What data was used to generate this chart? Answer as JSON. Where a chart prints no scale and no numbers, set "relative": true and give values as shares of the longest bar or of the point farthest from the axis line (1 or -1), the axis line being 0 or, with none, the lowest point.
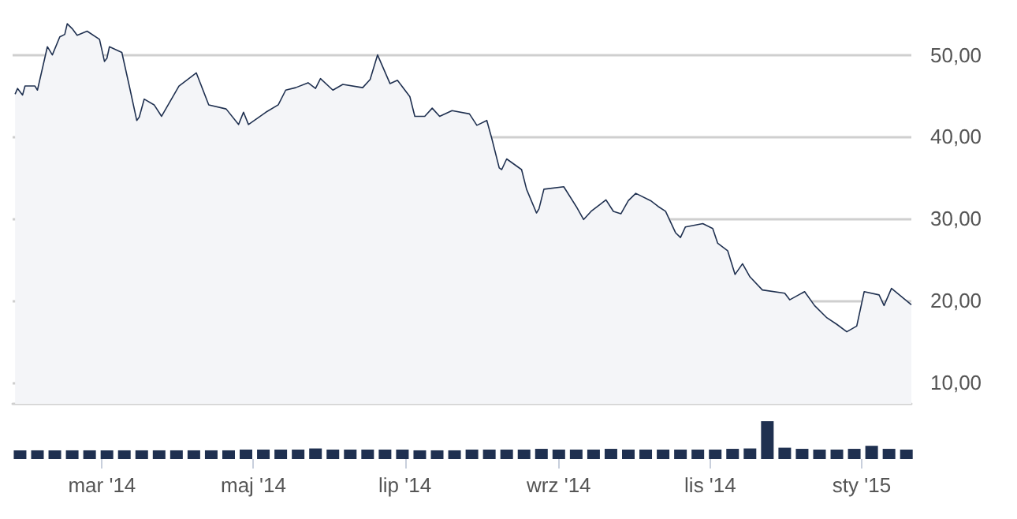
{
  "chart_data": [
    {
      "type": "area",
      "tick_labels": "y",
      "grid": "y",
      "xlim": [
        "2014-01-24",
        "2015-01-21"
      ],
      "ylim": [
        7.4,
        56.7
      ],
      "yticks": [
        {
          "value": 10,
          "label": "10,00"
        },
        {
          "value": 20,
          "label": "20,00"
        },
        {
          "value": 30,
          "label": "30,00"
        },
        {
          "value": 40,
          "label": "40,00"
        },
        {
          "value": 50,
          "label": "50,00"
        }
      ],
      "series": [
        {
          "color": "#1f3050",
          "x": [
            "2014-01-25",
            "2014-01-26",
            "2014-01-28",
            "2014-01-29",
            "2014-02-02",
            "2014-02-03",
            "2014-02-07",
            "2014-02-09",
            "2014-02-12",
            "2014-02-14",
            "2014-02-15",
            "2014-02-17",
            "2014-02-19",
            "2014-02-23",
            "2014-02-28",
            "2014-03-02",
            "2014-03-03",
            "2014-03-04",
            "2014-03-09",
            "2014-03-12",
            "2014-03-15",
            "2014-03-16",
            "2014-03-18",
            "2014-03-22",
            "2014-03-25",
            "2014-04-01",
            "2014-04-08",
            "2014-04-13",
            "2014-04-20",
            "2014-04-25",
            "2014-04-27",
            "2014-04-29",
            "2014-05-06",
            "2014-05-11",
            "2014-05-14",
            "2014-05-18",
            "2014-05-23",
            "2014-05-26",
            "2014-05-28",
            "2014-06-02",
            "2014-06-06",
            "2014-06-14",
            "2014-06-17",
            "2014-06-20",
            "2014-06-25",
            "2014-06-28",
            "2014-07-03",
            "2014-07-05",
            "2014-07-09",
            "2014-07-12",
            "2014-07-15",
            "2014-07-20",
            "2014-07-27",
            "2014-07-30",
            "2014-08-03",
            "2014-08-05",
            "2014-08-08",
            "2014-08-09",
            "2014-08-11",
            "2014-08-17",
            "2014-08-19",
            "2014-08-23",
            "2014-08-24",
            "2014-08-26",
            "2014-09-03",
            "2014-09-08",
            "2014-09-11",
            "2014-09-14",
            "2014-09-20",
            "2014-09-23",
            "2014-09-26",
            "2014-09-29",
            "2014-10-02",
            "2014-10-08",
            "2014-10-11",
            "2014-10-14",
            "2014-10-18",
            "2014-10-20",
            "2014-10-22",
            "2014-10-29",
            "2014-11-02",
            "2014-11-04",
            "2014-11-08",
            "2014-11-11",
            "2014-11-14",
            "2014-11-17",
            "2014-11-22",
            "2014-12-01",
            "2014-12-03",
            "2014-12-09",
            "2014-12-13",
            "2014-12-18",
            "2014-12-22",
            "2014-12-26",
            "2014-12-30",
            "2015-01-02",
            "2015-01-08",
            "2015-01-10",
            "2015-01-13",
            "2015-01-21"
          ],
          "values": [
            45.2,
            45.9,
            45.1,
            46.2,
            46.2,
            45.7,
            51.0,
            50.0,
            52.2,
            52.5,
            53.8,
            53.2,
            52.4,
            52.9,
            51.9,
            49.2,
            49.6,
            51.0,
            50.3,
            46.2,
            42.0,
            42.4,
            44.6,
            43.9,
            42.5,
            46.2,
            47.8,
            43.9,
            43.4,
            41.5,
            43.0,
            41.5,
            43.0,
            43.9,
            45.7,
            46.0,
            46.6,
            45.9,
            47.1,
            45.7,
            46.4,
            46.0,
            47.0,
            50.0,
            46.5,
            46.9,
            44.9,
            42.5,
            42.5,
            43.5,
            42.5,
            43.2,
            42.8,
            41.4,
            42.0,
            39.8,
            36.2,
            36.0,
            37.3,
            36.0,
            33.6,
            30.7,
            31.2,
            33.6,
            33.9,
            31.5,
            29.9,
            30.9,
            32.3,
            30.9,
            30.6,
            32.2,
            33.1,
            32.2,
            31.5,
            30.9,
            28.3,
            27.7,
            29.0,
            29.4,
            28.8,
            27.0,
            26.1,
            23.2,
            24.5,
            22.9,
            21.3,
            20.9,
            20.1,
            21.1,
            19.4,
            17.9,
            17.1,
            16.2,
            16.9,
            21.1,
            20.7,
            19.4,
            21.5,
            19.5
          ]
        }
      ]
    },
    {
      "type": "bar",
      "relative": true,
      "tick_labels": "x",
      "xlim": [
        "2014-01-24",
        "2015-01-21"
      ],
      "xticks": [
        {
          "value": "2014-03-01",
          "label": "mar '14"
        },
        {
          "value": "2014-05-01",
          "label": "maj '14"
        },
        {
          "value": "2014-07-01",
          "label": "lip '14"
        },
        {
          "value": "2014-09-01",
          "label": "wrz '14"
        },
        {
          "value": "2014-11-01",
          "label": "lis '14"
        },
        {
          "value": "2015-01-01",
          "label": "sty '15"
        }
      ],
      "series": [
        {
          "color": "#1f3050",
          "x": [
            "2014-01-27",
            "2014-02-03",
            "2014-02-10",
            "2014-02-17",
            "2014-02-24",
            "2014-03-03",
            "2014-03-10",
            "2014-03-17",
            "2014-03-24",
            "2014-03-31",
            "2014-04-07",
            "2014-04-14",
            "2014-04-21",
            "2014-04-28",
            "2014-05-05",
            "2014-05-12",
            "2014-05-19",
            "2014-05-26",
            "2014-06-02",
            "2014-06-09",
            "2014-06-16",
            "2014-06-23",
            "2014-06-30",
            "2014-07-07",
            "2014-07-14",
            "2014-07-21",
            "2014-07-28",
            "2014-08-04",
            "2014-08-11",
            "2014-08-18",
            "2014-08-25",
            "2014-09-01",
            "2014-09-08",
            "2014-09-15",
            "2014-09-22",
            "2014-09-29",
            "2014-10-06",
            "2014-10-13",
            "2014-10-20",
            "2014-10-27",
            "2014-11-03",
            "2014-11-10",
            "2014-11-17",
            "2014-11-24",
            "2014-12-01",
            "2014-12-08",
            "2014-12-15",
            "2014-12-22",
            "2014-12-29",
            "2015-01-05",
            "2015-01-12",
            "2015-01-19"
          ],
          "values": [
            0.23,
            0.23,
            0.23,
            0.23,
            0.23,
            0.23,
            0.23,
            0.23,
            0.23,
            0.23,
            0.23,
            0.23,
            0.23,
            0.25,
            0.25,
            0.25,
            0.25,
            0.28,
            0.25,
            0.25,
            0.25,
            0.25,
            0.25,
            0.23,
            0.23,
            0.23,
            0.25,
            0.25,
            0.25,
            0.25,
            0.27,
            0.25,
            0.25,
            0.25,
            0.27,
            0.25,
            0.25,
            0.25,
            0.25,
            0.25,
            0.25,
            0.27,
            0.28,
            1.0,
            0.3,
            0.27,
            0.25,
            0.25,
            0.27,
            0.35,
            0.27,
            0.25
          ]
        }
      ]
    }
  ]
}
